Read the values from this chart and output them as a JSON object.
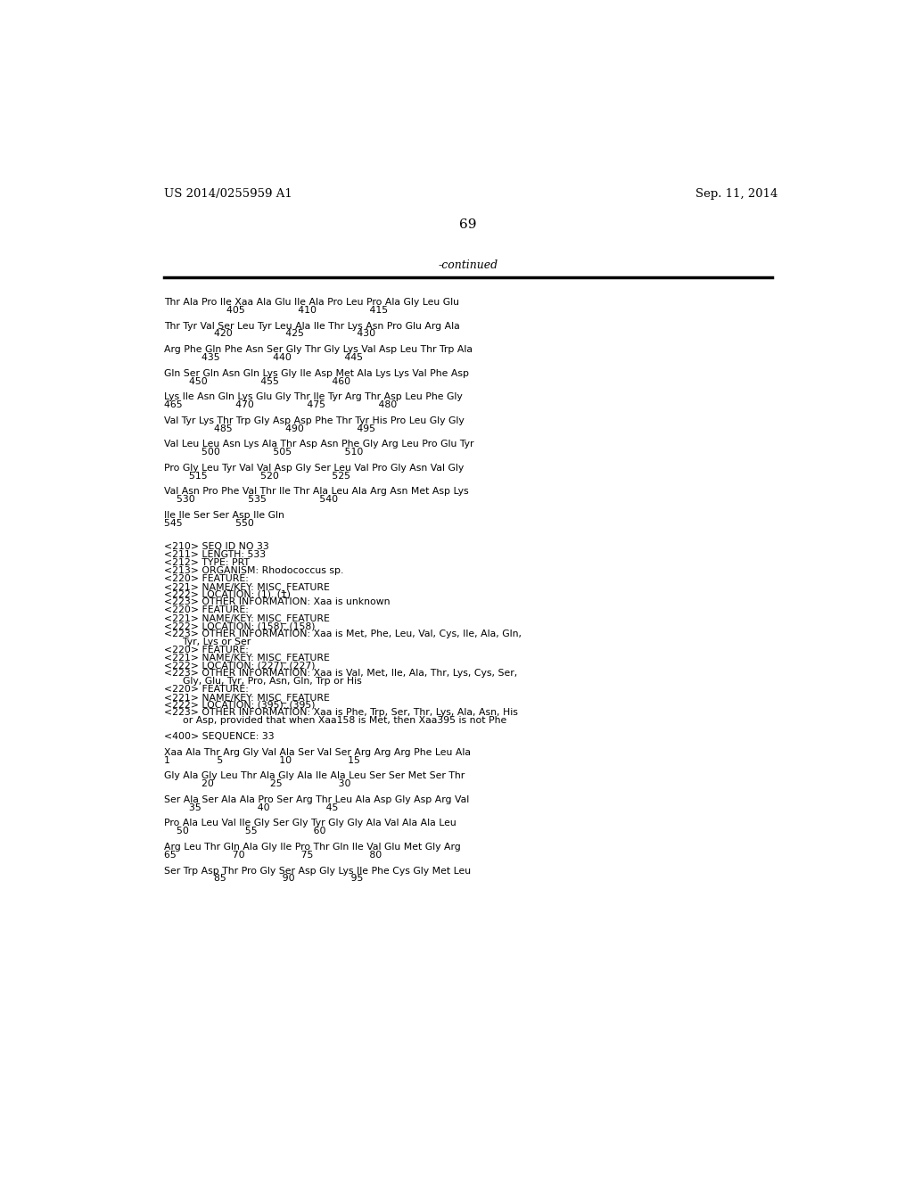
{
  "header_left": "US 2014/0255959 A1",
  "header_right": "Sep. 11, 2014",
  "page_number": "69",
  "continued_label": "-continued",
  "background_color": "#ffffff",
  "text_color": "#000000",
  "header_fontsize": 9.5,
  "page_num_fontsize": 11,
  "continued_fontsize": 9,
  "body_fontsize": 7.8,
  "lines": [
    "Thr Ala Pro Ile Xaa Ala Glu Ile Ala Pro Leu Pro Ala Gly Leu Glu",
    "                    405                 410                 415",
    "",
    "Thr Tyr Val Ser Leu Tyr Leu Ala Ile Thr Lys Asn Pro Glu Arg Ala",
    "                420                 425                 430",
    "",
    "Arg Phe Gln Phe Asn Ser Gly Thr Gly Lys Val Asp Leu Thr Trp Ala",
    "            435                 440                 445",
    "",
    "Gln Ser Gln Asn Gln Lys Gly Ile Asp Met Ala Lys Lys Val Phe Asp",
    "        450                 455                 460",
    "",
    "Lys Ile Asn Gln Lys Glu Gly Thr Ile Tyr Arg Thr Asp Leu Phe Gly",
    "465                 470                 475                 480",
    "",
    "Val Tyr Lys Thr Trp Gly Asp Asp Phe Thr Tyr His Pro Leu Gly Gly",
    "                485                 490                 495",
    "",
    "Val Leu Leu Asn Lys Ala Thr Asp Asn Phe Gly Arg Leu Pro Glu Tyr",
    "            500                 505                 510",
    "",
    "Pro Gly Leu Tyr Val Val Asp Gly Ser Leu Val Pro Gly Asn Val Gly",
    "        515                 520                 525",
    "",
    "Val Asn Pro Phe Val Thr Ile Thr Ala Leu Ala Arg Asn Met Asp Lys",
    "    530                 535                 540",
    "",
    "Ile Ile Ser Ser Asp Ile Gln",
    "545                 550",
    "",
    "",
    "<210> SEQ ID NO 33",
    "<211> LENGTH: 533",
    "<212> TYPE: PRT",
    "<213> ORGANISM: Rhodococcus sp.",
    "<220> FEATURE:",
    "<221> NAME/KEY: MISC_FEATURE",
    "<222> LOCATION: (1)..(1)",
    "<223> OTHER INFORMATION: Xaa is unknown",
    "<220> FEATURE:",
    "<221> NAME/KEY: MISC_FEATURE",
    "<222> LOCATION: (158)..(158)",
    "<223> OTHER INFORMATION: Xaa is Met, Phe, Leu, Val, Cys, Ile, Ala, Gln,",
    "      Tyr, Lys or Ser",
    "<220> FEATURE:",
    "<221> NAME/KEY: MISC_FEATURE",
    "<222> LOCATION: (227)..(227)",
    "<223> OTHER INFORMATION: Xaa is Val, Met, Ile, Ala, Thr, Lys, Cys, Ser,",
    "      Gly, Glu, Tyr, Pro, Asn, Gln, Trp or His",
    "<220> FEATURE:",
    "<221> NAME/KEY: MISC_FEATURE",
    "<222> LOCATION: (395)..(395)",
    "<223> OTHER INFORMATION: Xaa is Phe, Trp, Ser, Thr, Lys, Ala, Asn, His",
    "      or Asp, provided that when Xaa158 is Met, then Xaa395 is not Phe",
    "",
    "<400> SEQUENCE: 33",
    "",
    "Xaa Ala Thr Arg Gly Val Ala Ser Val Ser Arg Arg Arg Phe Leu Ala",
    "1               5                  10                  15",
    "",
    "Gly Ala Gly Leu Thr Ala Gly Ala Ile Ala Leu Ser Ser Met Ser Thr",
    "            20                  25                  30",
    "",
    "Ser Ala Ser Ala Ala Pro Ser Arg Thr Leu Ala Asp Gly Asp Arg Val",
    "        35                  40                  45",
    "",
    "Pro Ala Leu Val Ile Gly Ser Gly Tyr Gly Gly Ala Val Ala Ala Leu",
    "    50                  55                  60",
    "",
    "Arg Leu Thr Gln Ala Gly Ile Pro Thr Gln Ile Val Glu Met Gly Arg",
    "65                  70                  75                  80",
    "",
    "Ser Trp Asp Thr Pro Gly Ser Asp Gly Lys Ile Phe Cys Gly Met Leu",
    "                85                  90                  95"
  ]
}
